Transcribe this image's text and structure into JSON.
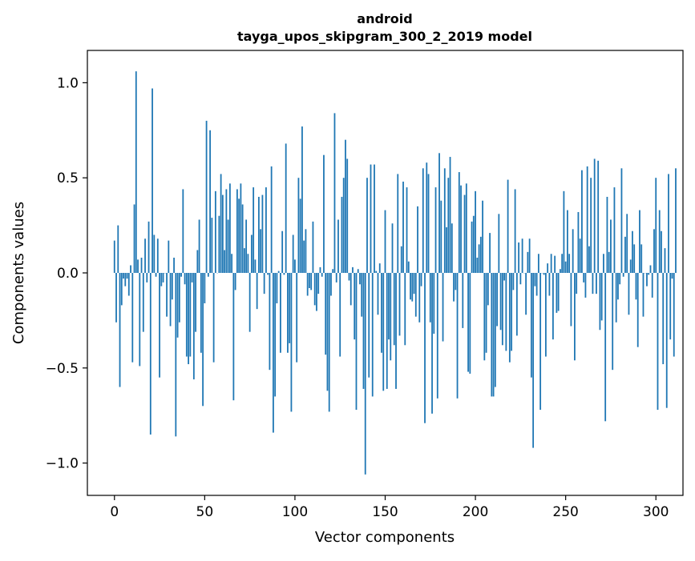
{
  "chart_data": {
    "type": "bar",
    "title_line1": "android",
    "title_line2": "tayga_upos_skipgram_300_2_2019 model",
    "xlabel": "Vector components",
    "ylabel": "Components values",
    "xlim": [
      -15,
      315
    ],
    "ylim": [
      -1.17,
      1.17
    ],
    "xticks": [
      0,
      50,
      100,
      150,
      200,
      250,
      300
    ],
    "xtick_labels": [
      "0",
      "50",
      "100",
      "150",
      "200",
      "250",
      "300"
    ],
    "yticks": [
      1.0,
      0.5,
      0.0,
      -0.5,
      -1.0
    ],
    "ytick_labels": [
      "1.0",
      "0.5",
      "0.0",
      "−0.5",
      "−1.0"
    ],
    "bar_color": "#1f77b4",
    "values": [
      0.17,
      -0.26,
      0.25,
      -0.6,
      -0.17,
      -0.03,
      -0.07,
      -0.03,
      -0.12,
      0.04,
      -0.47,
      0.36,
      1.06,
      0.07,
      -0.49,
      0.08,
      -0.31,
      0.18,
      -0.05,
      0.27,
      -0.85,
      0.97,
      0.2,
      -0.02,
      0.18,
      -0.55,
      -0.07,
      -0.05,
      0.0,
      -0.23,
      0.17,
      -0.28,
      -0.14,
      0.08,
      -0.86,
      -0.34,
      -0.26,
      -0.02,
      0.44,
      -0.06,
      -0.44,
      -0.48,
      -0.44,
      -0.05,
      -0.56,
      -0.31,
      0.12,
      0.28,
      -0.42,
      -0.7,
      -0.16,
      0.8,
      -0.02,
      0.75,
      0.29,
      -0.47,
      0.43,
      0.0,
      0.3,
      0.52,
      0.41,
      0.12,
      0.44,
      0.28,
      0.47,
      0.1,
      -0.67,
      -0.09,
      0.44,
      0.39,
      0.47,
      0.36,
      0.13,
      0.28,
      0.1,
      -0.31,
      0.2,
      0.45,
      0.07,
      -0.19,
      0.4,
      0.23,
      0.41,
      -0.11,
      0.45,
      -0.01,
      -0.51,
      0.56,
      -0.84,
      -0.65,
      -0.16,
      0.01,
      -0.42,
      0.22,
      -0.01,
      0.68,
      -0.42,
      -0.37,
      -0.73,
      0.2,
      0.07,
      -0.47,
      0.5,
      0.39,
      0.77,
      0.17,
      0.23,
      -0.12,
      -0.08,
      -0.09,
      0.27,
      -0.17,
      -0.2,
      -0.11,
      0.03,
      -0.02,
      0.62,
      -0.43,
      -0.62,
      -0.73,
      -0.12,
      0.02,
      0.84,
      -0.05,
      0.28,
      -0.44,
      0.4,
      0.5,
      0.7,
      0.6,
      -0.04,
      -0.17,
      0.03,
      -0.35,
      -0.72,
      0.02,
      -0.06,
      -0.23,
      -0.61,
      -1.06,
      0.5,
      -0.55,
      0.57,
      -0.65,
      0.57,
      0.01,
      -0.22,
      0.05,
      -0.42,
      -0.62,
      0.33,
      -0.61,
      -0.35,
      -0.46,
      0.26,
      -0.38,
      -0.61,
      0.52,
      -0.33,
      0.14,
      0.48,
      -0.38,
      0.45,
      0.06,
      -0.14,
      -0.15,
      -0.11,
      -0.23,
      0.35,
      -0.26,
      -0.07,
      0.55,
      -0.79,
      0.58,
      0.52,
      -0.26,
      -0.74,
      -0.32,
      0.45,
      -0.66,
      0.63,
      0.38,
      -0.36,
      0.55,
      0.24,
      0.5,
      0.61,
      0.26,
      -0.15,
      -0.09,
      -0.66,
      0.53,
      0.46,
      -0.29,
      0.41,
      0.47,
      -0.52,
      -0.53,
      0.27,
      0.3,
      0.43,
      0.08,
      0.15,
      0.19,
      0.38,
      -0.46,
      -0.42,
      -0.17,
      0.21,
      -0.65,
      -0.65,
      -0.6,
      -0.28,
      0.31,
      -0.3,
      -0.38,
      -0.04,
      -0.41,
      0.49,
      -0.47,
      -0.41,
      -0.09,
      0.44,
      -0.33,
      0.16,
      -0.06,
      0.18,
      0.0,
      -0.22,
      0.11,
      0.18,
      -0.55,
      -0.92,
      -0.07,
      -0.12,
      0.1,
      -0.72,
      0.0,
      -0.01,
      -0.44,
      0.05,
      -0.12,
      0.1,
      -0.35,
      0.09,
      -0.21,
      -0.2,
      0.02,
      0.1,
      0.43,
      0.06,
      0.33,
      0.1,
      -0.28,
      0.23,
      -0.46,
      -0.11,
      0.32,
      0.18,
      0.54,
      -0.05,
      -0.13,
      0.56,
      0.14,
      0.5,
      -0.11,
      0.6,
      -0.11,
      0.59,
      -0.3,
      -0.25,
      0.1,
      -0.78,
      0.4,
      0.11,
      0.28,
      -0.51,
      0.45,
      -0.26,
      -0.14,
      -0.06,
      0.55,
      -0.02,
      0.19,
      0.31,
      -0.22,
      0.07,
      0.22,
      0.15,
      -0.14,
      -0.39,
      0.33,
      0.15,
      -0.23,
      0.0,
      -0.07,
      -0.01,
      0.04,
      -0.13,
      0.23,
      0.5,
      -0.72,
      0.33,
      0.22,
      -0.48,
      0.13,
      -0.71,
      0.52,
      -0.35,
      -0.03,
      -0.44,
      0.55
    ]
  }
}
